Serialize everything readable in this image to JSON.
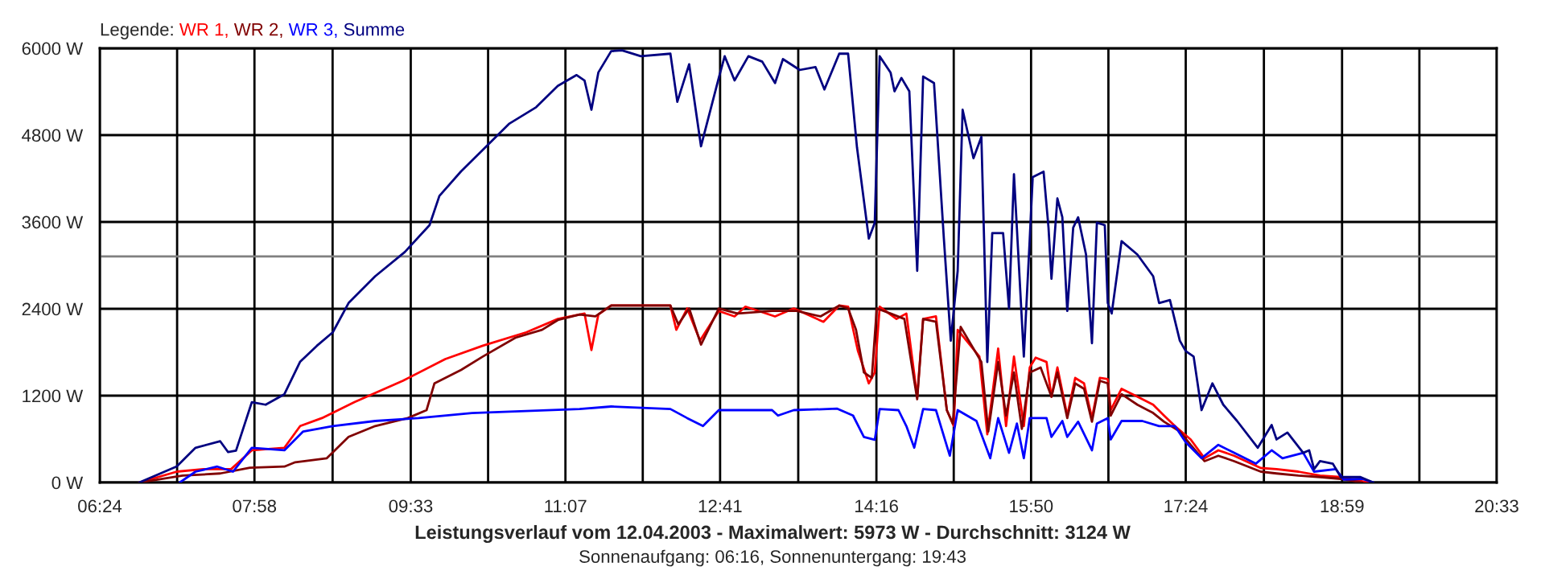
{
  "chart_data": {
    "type": "line",
    "title": "Leistungsverlauf vom 12.04.2003 - Maximalwert: 5973 W - Durchschnitt: 3124 W",
    "subtitle": "Sonnenaufgang: 06:16, Sonnenuntergang: 19:43",
    "legend_title": "Legende:",
    "legend": "top left",
    "grid": true,
    "xlim": [
      6.4,
      20.55
    ],
    "xticks": [
      {
        "value": 6.4,
        "label": "06:24"
      },
      {
        "value": 7.1833,
        "label": null
      },
      {
        "value": 7.9667,
        "label": "07:58"
      },
      {
        "value": 8.7583,
        "label": null
      },
      {
        "value": 9.55,
        "label": "09:33"
      },
      {
        "value": 10.3333,
        "label": null
      },
      {
        "value": 11.1167,
        "label": "11:07"
      },
      {
        "value": 11.9,
        "label": null
      },
      {
        "value": 12.6833,
        "label": "12:41"
      },
      {
        "value": 13.475,
        "label": null
      },
      {
        "value": 14.2667,
        "label": "14:16"
      },
      {
        "value": 15.05,
        "label": null
      },
      {
        "value": 15.8333,
        "label": "15:50"
      },
      {
        "value": 16.6167,
        "label": null
      },
      {
        "value": 17.4,
        "label": "17:24"
      },
      {
        "value": 18.1917,
        "label": null
      },
      {
        "value": 18.9833,
        "label": "18:59"
      },
      {
        "value": 19.7667,
        "label": null
      },
      {
        "value": 20.55,
        "label": "20:33"
      }
    ],
    "ylim": [
      0,
      6000
    ],
    "yticks": [
      {
        "value": 0,
        "label": "0 W"
      },
      {
        "value": 1200,
        "label": "1200 W"
      },
      {
        "value": 2400,
        "label": "2400 W"
      },
      {
        "value": 3600,
        "label": "3600 W"
      },
      {
        "value": 4800,
        "label": "4800 W"
      },
      {
        "value": 6000,
        "label": "6000 W"
      }
    ],
    "ref_lines": [
      {
        "axis": "y",
        "value": 3124,
        "color": "#808080"
      }
    ],
    "series": [
      {
        "name": "WR 1,",
        "color": "#ff0000",
        "x": [
          6.8,
          7.18,
          7.45,
          7.73,
          7.94,
          8.27,
          8.43,
          8.65,
          8.98,
          9.47,
          9.9,
          10.28,
          10.72,
          11.04,
          11.31,
          11.38,
          11.45,
          11.58,
          12.18,
          12.24,
          12.35,
          12.48,
          12.67,
          12.83,
          12.94,
          13.24,
          13.43,
          13.73,
          13.89,
          13.98,
          14.08,
          14.19,
          14.25,
          14.3,
          14.47,
          14.57,
          14.68,
          14.74,
          14.87,
          14.98,
          15.05,
          15.09,
          15.31,
          15.39,
          15.5,
          15.58,
          15.66,
          15.76,
          15.82,
          15.88,
          15.99,
          16.04,
          16.1,
          16.2,
          16.28,
          16.37,
          16.45,
          16.53,
          16.61,
          16.64,
          16.75,
          16.91,
          17.07,
          17.18,
          17.29,
          17.45,
          17.59,
          17.73,
          17.89,
          18.16,
          18.32,
          18.54,
          18.76,
          18.97,
          19.19,
          19.25
        ],
        "values": [
          0,
          150,
          185,
          185,
          445,
          480,
          780,
          890,
          1110,
          1405,
          1705,
          1890,
          2075,
          2260,
          2335,
          1830,
          2320,
          2445,
          2445,
          2110,
          2405,
          1960,
          2370,
          2295,
          2430,
          2295,
          2405,
          2220,
          2445,
          2430,
          1815,
          1370,
          1520,
          2430,
          2260,
          2335,
          1185,
          2260,
          2295,
          1000,
          780,
          2110,
          1740,
          665,
          1850,
          780,
          1740,
          780,
          1590,
          1725,
          1665,
          1185,
          1590,
          925,
          1445,
          1370,
          890,
          1445,
          1430,
          1000,
          1295,
          1185,
          1075,
          925,
          780,
          595,
          335,
          445,
          370,
          200,
          185,
          150,
          95,
          75,
          15,
          0
        ]
      },
      {
        "name": "WR 2,",
        "color": "#800000",
        "x": [
          6.8,
          7.24,
          7.62,
          7.92,
          8.27,
          8.38,
          8.7,
          8.92,
          9.19,
          9.52,
          9.71,
          9.79,
          10.06,
          10.28,
          10.61,
          10.88,
          11.04,
          11.26,
          11.42,
          11.58,
          12.18,
          12.26,
          12.37,
          12.49,
          12.67,
          12.86,
          13.21,
          13.46,
          13.7,
          13.89,
          13.98,
          14.06,
          14.14,
          14.22,
          14.27,
          14.41,
          14.55,
          14.68,
          14.74,
          14.87,
          14.98,
          15.04,
          15.12,
          15.33,
          15.4,
          15.5,
          15.58,
          15.66,
          15.74,
          15.82,
          15.93,
          16.04,
          16.1,
          16.2,
          16.28,
          16.37,
          16.45,
          16.53,
          16.61,
          16.64,
          16.75,
          16.91,
          17.07,
          17.18,
          17.34,
          17.45,
          17.59,
          17.73,
          17.89,
          18.16,
          18.32,
          18.54,
          18.76,
          18.97,
          19.19
        ],
        "values": [
          0,
          95,
          125,
          205,
          220,
          280,
          335,
          630,
          780,
          890,
          1000,
          1370,
          1555,
          1740,
          2000,
          2110,
          2245,
          2320,
          2295,
          2445,
          2445,
          2185,
          2405,
          1905,
          2405,
          2335,
          2370,
          2370,
          2295,
          2445,
          2405,
          2110,
          1520,
          1445,
          2405,
          2335,
          2260,
          1150,
          2260,
          2220,
          1000,
          815,
          2150,
          1665,
          705,
          1665,
          925,
          1520,
          740,
          1520,
          1590,
          1185,
          1520,
          890,
          1370,
          1295,
          840,
          1405,
          1370,
          925,
          1220,
          1075,
          960,
          840,
          705,
          520,
          295,
          370,
          295,
          150,
          125,
          95,
          75,
          50,
          0
        ]
      },
      {
        "name": "WR 3,",
        "color": "#0000ff",
        "x": [
          7.21,
          7.37,
          7.59,
          7.75,
          7.94,
          8.27,
          8.46,
          8.76,
          9.19,
          9.63,
          10.17,
          11.26,
          11.58,
          12.18,
          12.35,
          12.51,
          12.67,
          13.21,
          13.27,
          13.43,
          13.87,
          14.03,
          14.14,
          14.25,
          14.3,
          14.49,
          14.57,
          14.65,
          14.74,
          14.87,
          15.01,
          15.09,
          15.28,
          15.42,
          15.5,
          15.61,
          15.69,
          15.76,
          15.82,
          15.99,
          16.04,
          16.15,
          16.2,
          16.31,
          16.45,
          16.5,
          16.61,
          16.64,
          16.75,
          16.96,
          17.13,
          17.29,
          17.4,
          17.56,
          17.73,
          17.89,
          18.11,
          18.27,
          18.38,
          18.59,
          18.7,
          18.92,
          19.0,
          19.19,
          19.3
        ],
        "values": [
          0,
          150,
          220,
          150,
          480,
          445,
          705,
          780,
          850,
          890,
          960,
          1015,
          1050,
          1015,
          890,
          780,
          1000,
          1000,
          925,
          1000,
          1020,
          925,
          630,
          590,
          1015,
          1000,
          780,
          480,
          1015,
          1000,
          370,
          1000,
          850,
          335,
          890,
          410,
          815,
          335,
          890,
          890,
          630,
          850,
          630,
          840,
          445,
          815,
          890,
          595,
          850,
          850,
          780,
          780,
          555,
          335,
          520,
          410,
          260,
          445,
          335,
          410,
          150,
          185,
          40,
          50,
          0
        ]
      },
      {
        "name": "Summe",
        "color": "#000080",
        "x": [
          6.8,
          7.18,
          7.37,
          7.62,
          7.7,
          7.78,
          7.94,
          8.08,
          8.27,
          8.43,
          8.6,
          8.76,
          8.92,
          9.19,
          9.49,
          9.74,
          9.84,
          10.06,
          10.33,
          10.55,
          10.82,
          11.04,
          11.23,
          11.31,
          11.38,
          11.45,
          11.58,
          11.69,
          11.88,
          12.18,
          12.25,
          12.37,
          12.49,
          12.67,
          12.73,
          12.83,
          12.97,
          13.11,
          13.24,
          13.32,
          13.49,
          13.65,
          13.74,
          13.89,
          13.98,
          14.07,
          14.19,
          14.25,
          14.26,
          14.3,
          14.41,
          14.45,
          14.52,
          14.6,
          14.68,
          14.74,
          14.85,
          14.95,
          15.02,
          15.09,
          15.14,
          15.25,
          15.33,
          15.39,
          15.44,
          15.55,
          15.61,
          15.66,
          15.76,
          15.82,
          15.85,
          15.96,
          16.01,
          16.04,
          16.1,
          16.15,
          16.2,
          16.26,
          16.31,
          16.39,
          16.45,
          16.5,
          16.58,
          16.61,
          16.65,
          16.75,
          16.91,
          17.07,
          17.13,
          17.24,
          17.34,
          17.4,
          17.48,
          17.56,
          17.67,
          17.78,
          17.92,
          18.13,
          18.27,
          18.32,
          18.43,
          18.59,
          18.65,
          18.7,
          18.76,
          18.89,
          18.97,
          19.17,
          19.3
        ],
        "values": [
          0,
          222,
          480,
          570,
          420,
          440,
          1110,
          1075,
          1220,
          1670,
          1890,
          2075,
          2480,
          2850,
          3185,
          3555,
          3960,
          4300,
          4665,
          4960,
          5185,
          5480,
          5630,
          5555,
          5150,
          5665,
          5960,
          5970,
          5890,
          5925,
          5260,
          5780,
          4645,
          5590,
          5890,
          5555,
          5890,
          5815,
          5520,
          5850,
          5700,
          5740,
          5430,
          5925,
          5925,
          4630,
          3370,
          3590,
          4075,
          5890,
          5665,
          5405,
          5590,
          5405,
          2925,
          5610,
          5520,
          3370,
          1960,
          2925,
          5150,
          4480,
          4775,
          1665,
          3445,
          3445,
          2405,
          4260,
          1740,
          3370,
          4220,
          4295,
          3520,
          2815,
          3925,
          3665,
          2370,
          3520,
          3665,
          3150,
          1925,
          3590,
          3555,
          2480,
          2335,
          3335,
          3150,
          2850,
          2480,
          2520,
          1960,
          1815,
          1740,
          1000,
          1370,
          1075,
          850,
          480,
          795,
          595,
          690,
          410,
          445,
          185,
          295,
          260,
          75,
          75,
          0
        ]
      }
    ]
  }
}
